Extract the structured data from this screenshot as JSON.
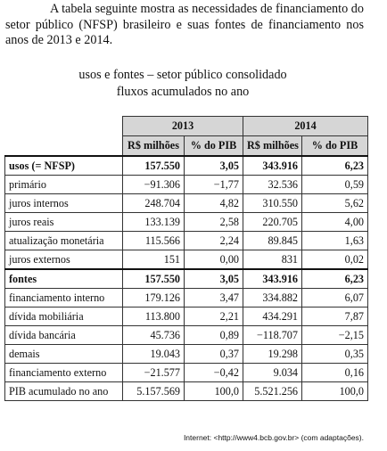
{
  "intro": "A tabela seguinte mostra as necessidades de financiamento do setor público (NFSP) brasileiro e suas fontes de financiamento nos anos de 2013 e 2014.",
  "table": {
    "title": [
      "usos e fontes – setor público consolidado",
      "fluxos acumulados no ano"
    ],
    "years": [
      "2013",
      "2014"
    ],
    "columns": [
      "R$ milhões",
      "% do PIB",
      "R$ milhões",
      "% do PIB"
    ],
    "rows": [
      [
        "usos (= NFSP)",
        "157.550",
        "3,05",
        "343.916",
        "6,23"
      ],
      [
        "primário",
        "−91.306",
        "−1,77",
        "32.536",
        "0,59"
      ],
      [
        "juros internos",
        "248.704",
        "4,82",
        "310.550",
        "5,62"
      ],
      [
        "juros reais",
        "133.139",
        "2,58",
        "220.705",
        "4,00"
      ],
      [
        "atualização monetária",
        "115.566",
        "2,24",
        "89.845",
        "1,63"
      ],
      [
        "juros externos",
        "151",
        "0,00",
        "831",
        "0,02"
      ],
      [
        "fontes",
        "157.550",
        "3,05",
        "343.916",
        "6,23"
      ],
      [
        "financiamento interno",
        "179.126",
        "3,47",
        "334.882",
        "6,07"
      ],
      [
        "dívida mobiliária",
        "113.800",
        "2,21",
        "434.291",
        "7,87"
      ],
      [
        "dívida bancária",
        "45.736",
        "0,89",
        "−118.707",
        "−2,15"
      ],
      [
        "demais",
        "19.043",
        "0,37",
        "19.298",
        "0,35"
      ],
      [
        "financiamento externo",
        "−21.577",
        "−0,42",
        "9.034",
        "0,16"
      ],
      [
        "PIB acumulado no ano",
        "5.157.569",
        "100,0",
        "5.521.256",
        "100,0"
      ]
    ],
    "bold_rows": [
      0,
      6
    ]
  },
  "source": "Internet: <http://www4.bcb.gov.br> (com adaptações)."
}
